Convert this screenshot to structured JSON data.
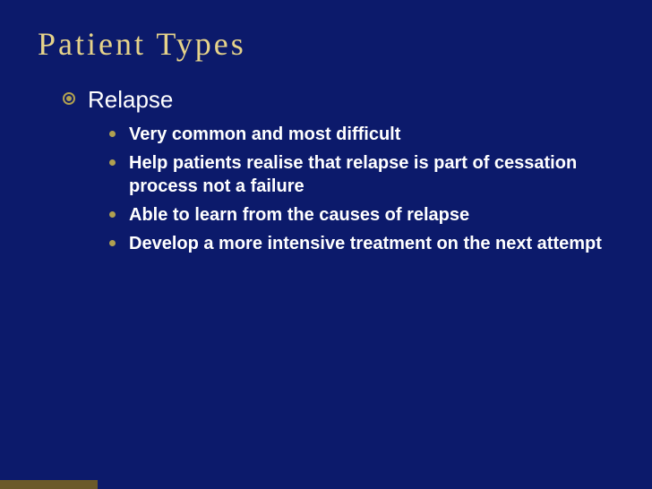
{
  "slide": {
    "title": "Patient Types",
    "background_color": "#0c1a6b",
    "title_color": "#e6d38a",
    "text_color": "#ffffff",
    "bullet_color": "#b0a050",
    "title_fontsize": 36,
    "level1": {
      "heading": "Relapse",
      "fontsize": 26,
      "sub_fontsize": 20,
      "items": [
        "Very common and most difficult",
        "Help patients realise that relapse is part of cessation process not a failure",
        "Able to learn from the causes of relapse",
        "Develop a more intensive treatment on the next attempt"
      ]
    }
  }
}
